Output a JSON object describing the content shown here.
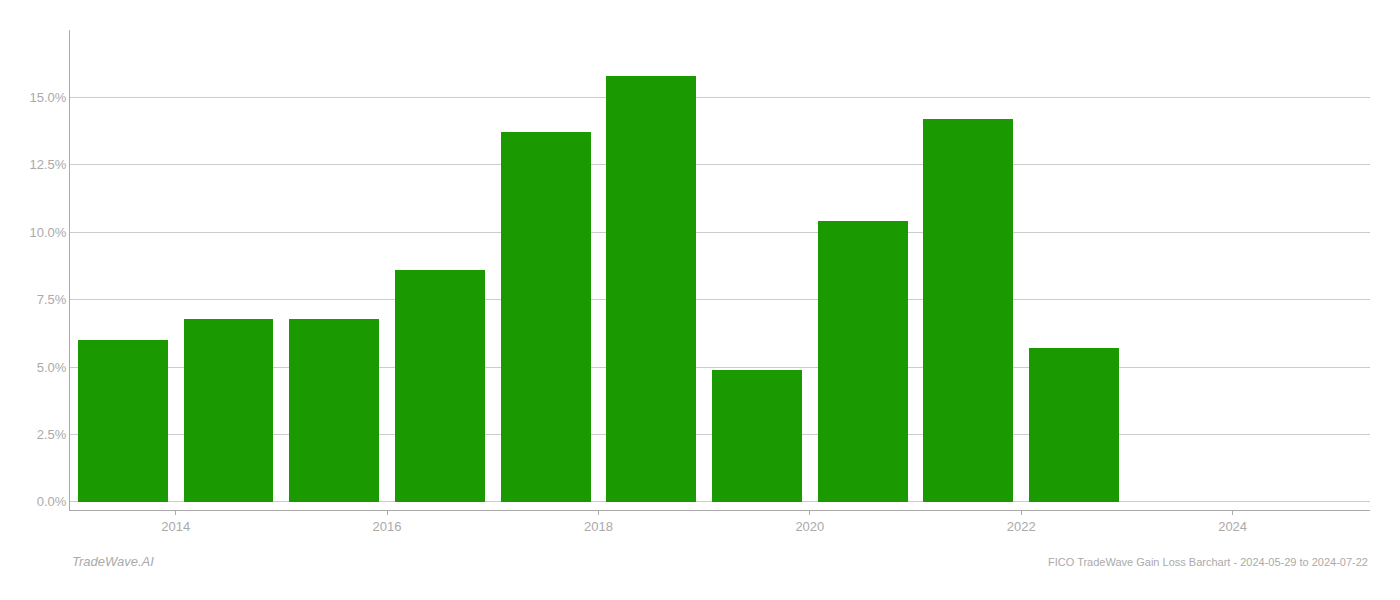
{
  "chart_data": {
    "type": "bar",
    "title": "FICO TradeWave Gain Loss Barchart - 2024-05-29 to 2024-07-22",
    "annotations": [
      "TradeWave.AI"
    ],
    "x": [
      2013,
      2014,
      2015,
      2016,
      2017,
      2018,
      2019,
      2020,
      2021,
      2022,
      2023
    ],
    "values": [
      0.06,
      0.068,
      0.068,
      0.086,
      0.137,
      0.158,
      0.049,
      0.104,
      0.142,
      0.057,
      null
    ],
    "color": "#1a9a00",
    "xlim": [
      2012.5,
      2024.8
    ],
    "xticks": [
      {
        "value": 2013.5,
        "label": "2014"
      },
      {
        "value": 2015.5,
        "label": "2016"
      },
      {
        "value": 2017.5,
        "label": "2018"
      },
      {
        "value": 2019.5,
        "label": "2020"
      },
      {
        "value": 2021.5,
        "label": "2022"
      },
      {
        "value": 2023.5,
        "label": "2024"
      }
    ],
    "ylim": [
      -0.003,
      0.175
    ],
    "yticks": [
      {
        "value": 0.0,
        "label": "0.0%"
      },
      {
        "value": 0.025,
        "label": "2.5%"
      },
      {
        "value": 0.05,
        "label": "5.0%"
      },
      {
        "value": 0.075,
        "label": "7.5%"
      },
      {
        "value": 0.1,
        "label": "10.0%"
      },
      {
        "value": 0.125,
        "label": "12.5%"
      },
      {
        "value": 0.15,
        "label": "15.0%"
      }
    ],
    "grid": true
  }
}
